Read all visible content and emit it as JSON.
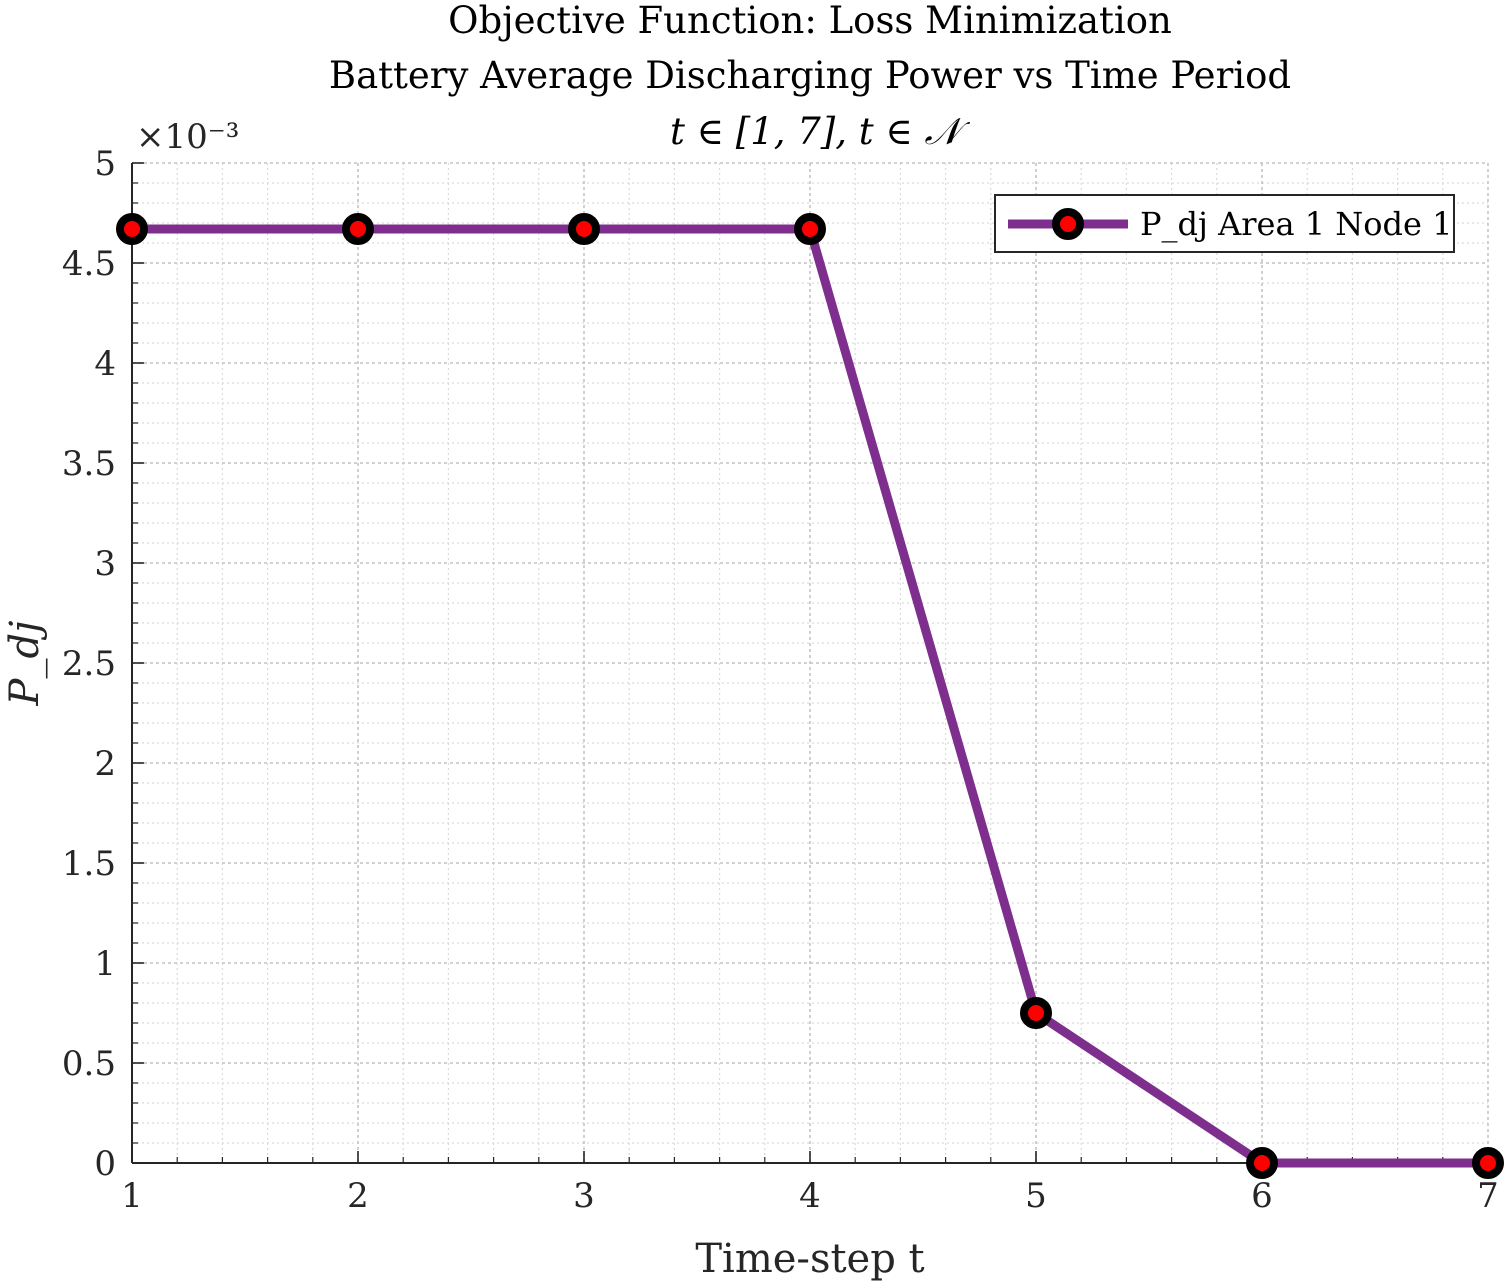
{
  "chart_data": {
    "type": "line",
    "title_lines": [
      "Objective Function: Loss Minimization",
      "Battery Average Discharging Power vs Time Period",
      "t ∈ [1, 7], t ∈ 𝒩"
    ],
    "xlabel": "Time-step t",
    "ylabel": "P_dj",
    "y_exponent_label": "×10⁻³",
    "xlim": [
      1,
      7
    ],
    "ylim": [
      0,
      5
    ],
    "x_ticks": [
      "1",
      "2",
      "3",
      "4",
      "5",
      "6",
      "7"
    ],
    "y_ticks": [
      "0",
      "0.5",
      "1",
      "1.5",
      "2",
      "2.5",
      "3",
      "3.5",
      "4",
      "4.5",
      "5"
    ],
    "grid": true,
    "minor_grid": true,
    "legend_position": "top-right",
    "series": [
      {
        "name": "P_dj Area 1 Node 1",
        "line_color": "#7E2F8E",
        "marker_edge_color": "#000000",
        "marker_face_color": "#FF0000",
        "x": [
          1,
          2,
          3,
          4,
          5,
          6,
          7
        ],
        "y": [
          4.67,
          4.67,
          4.67,
          4.67,
          0.75,
          0,
          0
        ]
      }
    ]
  }
}
